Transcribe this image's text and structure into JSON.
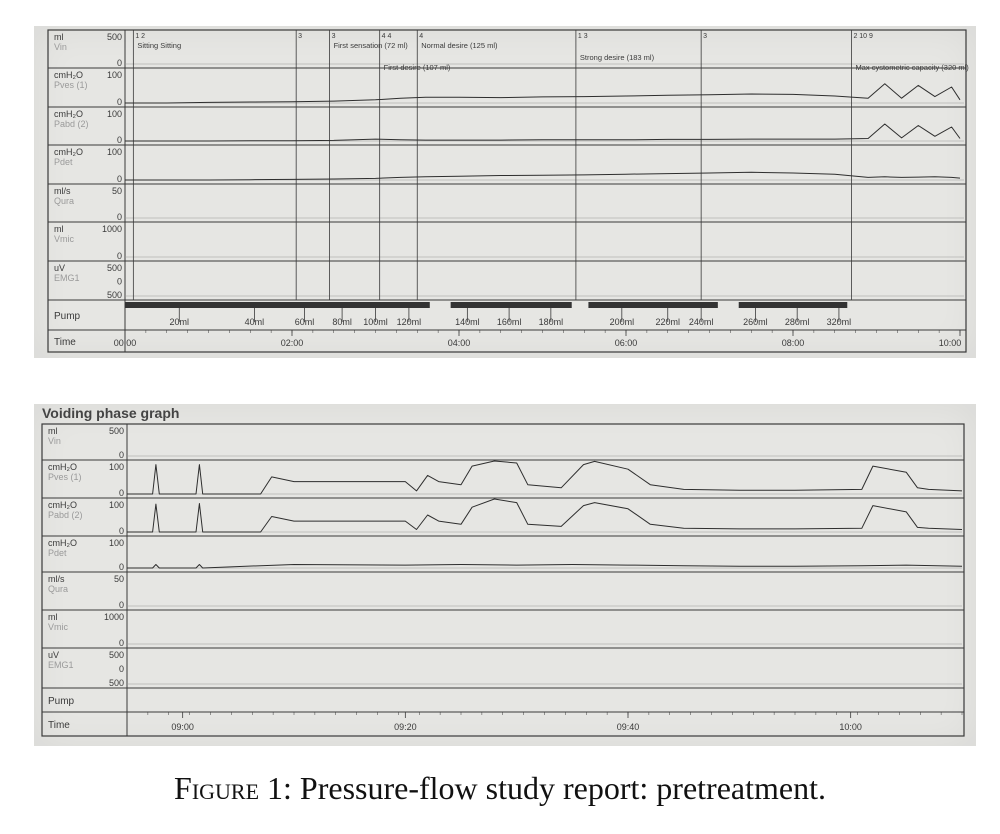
{
  "caption": {
    "label": "Figure 1:",
    "text": "Pressure-flow study report: pretreatment."
  },
  "colors": {
    "paper": "#e6e6e3",
    "ink": "#3a3a3a",
    "trace": "#2e2e2e",
    "faint": "#9a9a9a",
    "pump_bar": "#333333"
  },
  "chart_data": [
    {
      "type": "line",
      "title": "",
      "channels": [
        {
          "unit": "ml",
          "name": "Vin",
          "max": "500",
          "min": "0"
        },
        {
          "unit": "cmH2O",
          "name": "Pves (1)",
          "max": "100",
          "min": "0"
        },
        {
          "unit": "cmH2O",
          "name": "Pabd (2)",
          "max": "100",
          "min": "0"
        },
        {
          "unit": "cmH2O",
          "name": "Pdet",
          "max": "100",
          "min": "0"
        },
        {
          "unit": "ml/s",
          "name": "Qura",
          "max": "50",
          "min": "0"
        },
        {
          "unit": "ml",
          "name": "Vmic",
          "max": "1000",
          "min": "0"
        },
        {
          "unit": "uV",
          "name": "EMG1",
          "max": "500",
          "mid": "0",
          "min": "500"
        }
      ],
      "pump_label": "Pump",
      "time_label": "Time",
      "x_range_min": [
        0,
        10
      ],
      "time_ticks": [
        {
          "min": 0,
          "label": "00:00"
        },
        {
          "min": 2,
          "label": "02:00"
        },
        {
          "min": 4,
          "label": "04:00"
        },
        {
          "min": 6,
          "label": "06:00"
        },
        {
          "min": 8,
          "label": "08:00"
        },
        {
          "min": 10,
          "label": "10:00"
        }
      ],
      "pump_ticks": [
        {
          "min": 0.65,
          "label": "20ml"
        },
        {
          "min": 1.55,
          "label": "40ml"
        },
        {
          "min": 2.15,
          "label": "60ml"
        },
        {
          "min": 2.6,
          "label": "80ml"
        },
        {
          "min": 3.0,
          "label": "100ml"
        },
        {
          "min": 3.4,
          "label": "120ml"
        },
        {
          "min": 4.1,
          "label": "140ml"
        },
        {
          "min": 4.6,
          "label": "160ml"
        },
        {
          "min": 5.1,
          "label": "180ml"
        },
        {
          "min": 5.95,
          "label": "200ml"
        },
        {
          "min": 6.5,
          "label": "220ml"
        },
        {
          "min": 6.9,
          "label": "240ml"
        },
        {
          "min": 7.55,
          "label": "260ml"
        },
        {
          "min": 8.05,
          "label": "280ml"
        },
        {
          "min": 8.55,
          "label": "320ml"
        }
      ],
      "pump_segments": [
        [
          0,
          3.65
        ],
        [
          3.9,
          5.35
        ],
        [
          5.55,
          7.1
        ],
        [
          7.35,
          8.65
        ]
      ],
      "events": [
        {
          "min": 0.1,
          "mark": "1 2",
          "label": "Sitting  Sitting"
        },
        {
          "min": 2.05,
          "mark": "3",
          "label": ""
        },
        {
          "min": 2.45,
          "mark": "3",
          "label": "First sensation (72 ml)"
        },
        {
          "min": 3.05,
          "mark": "4 4",
          "label": "First desire (107 ml)"
        },
        {
          "min": 3.5,
          "mark": "4",
          "label": "Normal desire (125 ml)"
        },
        {
          "min": 5.4,
          "mark": "1 3",
          "label": "Strong desire (183 ml)"
        },
        {
          "min": 6.9,
          "mark": "3",
          "label": ""
        },
        {
          "min": 8.7,
          "mark": "2 10 9",
          "label": "Max cystometric capacity (320 ml)"
        }
      ],
      "series": [
        {
          "channel": "Pves (1)",
          "x_min": [
            0,
            0.5,
            1,
            1.5,
            2,
            2.5,
            3,
            3.3,
            3.6,
            4,
            4.5,
            5,
            5.5,
            6,
            6.5,
            7,
            7.5,
            8,
            8.5,
            8.9,
            9.1,
            9.3,
            9.5,
            9.7,
            9.9,
            10
          ],
          "y_cmH2O": [
            0,
            0,
            2,
            3,
            4,
            6,
            10,
            15,
            18,
            18,
            17,
            19,
            20,
            22,
            24,
            26,
            28,
            27,
            22,
            15,
            60,
            15,
            55,
            20,
            50,
            10
          ]
        },
        {
          "channel": "Pabd (2)",
          "x_min": [
            0,
            0.5,
            1,
            1.5,
            2,
            2.5,
            3,
            3.3,
            3.6,
            4,
            4.5,
            5,
            5.5,
            6,
            6.5,
            7,
            7.5,
            8,
            8.5,
            8.9,
            9.1,
            9.3,
            9.5,
            9.7,
            9.9,
            10
          ],
          "y_cmH2O": [
            0,
            0,
            0,
            1,
            1,
            2,
            6,
            4,
            3,
            3,
            3,
            4,
            4,
            4,
            5,
            5,
            6,
            6,
            6,
            8,
            55,
            10,
            50,
            15,
            45,
            8
          ]
        },
        {
          "channel": "Pdet",
          "x_min": [
            0,
            0.5,
            1,
            1.5,
            2,
            2.5,
            3,
            3.3,
            3.6,
            4,
            4.5,
            5,
            5.5,
            6,
            6.5,
            7,
            7.5,
            8,
            8.5,
            8.9,
            9.1,
            9.3,
            9.5,
            9.7,
            9.9,
            10
          ],
          "y_cmH2O": [
            0,
            0,
            0,
            1,
            2,
            3,
            5,
            8,
            10,
            12,
            14,
            15,
            16,
            18,
            20,
            22,
            24,
            22,
            18,
            8,
            10,
            8,
            9,
            10,
            8,
            6
          ]
        }
      ]
    },
    {
      "type": "line",
      "title": "Voiding phase graph",
      "channels": [
        {
          "unit": "ml",
          "name": "Vin",
          "max": "500",
          "min": "0"
        },
        {
          "unit": "cmH2O",
          "name": "Pves (1)",
          "max": "100",
          "min": "0"
        },
        {
          "unit": "cmH2O",
          "name": "Pabd (2)",
          "max": "100",
          "min": "0"
        },
        {
          "unit": "cmH2O",
          "name": "Pdet",
          "max": "100",
          "min": "0"
        },
        {
          "unit": "ml/s",
          "name": "Qura",
          "max": "50",
          "min": "0"
        },
        {
          "unit": "ml",
          "name": "Vmic",
          "max": "1000",
          "min": "0"
        },
        {
          "unit": "uV",
          "name": "EMG1",
          "max": "500",
          "mid": "0",
          "min": "500"
        }
      ],
      "pump_label": "Pump",
      "time_label": "Time",
      "x_range_min": [
        0,
        75
      ],
      "time_ticks": [
        {
          "min": 5,
          "label": "09:00"
        },
        {
          "min": 25,
          "label": "09:20"
        },
        {
          "min": 45,
          "label": "09:40"
        },
        {
          "min": 65,
          "label": "10:00"
        }
      ],
      "series": [
        {
          "channel": "Pves (1)",
          "x_min": [
            0,
            2.3,
            2.6,
            2.9,
            6.2,
            6.5,
            6.8,
            12,
            13,
            15,
            25,
            26,
            27,
            28,
            30,
            31,
            33,
            35,
            36,
            39,
            41,
            42,
            45,
            47,
            50,
            55,
            60,
            66,
            67,
            70,
            71,
            72,
            75
          ],
          "y_cmH2O": [
            0,
            0,
            95,
            0,
            0,
            95,
            0,
            0,
            55,
            40,
            40,
            10,
            60,
            40,
            30,
            90,
            120,
            100,
            30,
            20,
            95,
            105,
            80,
            30,
            15,
            12,
            12,
            15,
            90,
            70,
            20,
            15,
            10
          ]
        },
        {
          "channel": "Pabd (2)",
          "x_min": [
            0,
            2.3,
            2.6,
            2.9,
            6.2,
            6.5,
            6.8,
            12,
            13,
            15,
            25,
            26,
            27,
            28,
            30,
            31,
            33,
            35,
            36,
            39,
            41,
            42,
            45,
            47,
            50,
            55,
            60,
            66,
            67,
            70,
            71,
            72,
            75
          ],
          "y_cmH2O": [
            0,
            0,
            90,
            0,
            0,
            92,
            0,
            0,
            50,
            35,
            35,
            8,
            55,
            35,
            25,
            80,
            110,
            95,
            25,
            18,
            85,
            95,
            75,
            25,
            12,
            10,
            10,
            12,
            85,
            65,
            15,
            12,
            8
          ]
        },
        {
          "channel": "Pdet",
          "x_min": [
            0,
            2.3,
            2.6,
            2.9,
            6.2,
            6.5,
            6.8,
            12,
            15,
            25,
            30,
            35,
            40,
            45,
            50,
            55,
            60,
            66,
            70,
            75
          ],
          "y_cmH2O": [
            0,
            0,
            12,
            0,
            0,
            12,
            0,
            8,
            12,
            10,
            12,
            10,
            12,
            10,
            8,
            6,
            6,
            8,
            10,
            6
          ]
        }
      ]
    }
  ]
}
